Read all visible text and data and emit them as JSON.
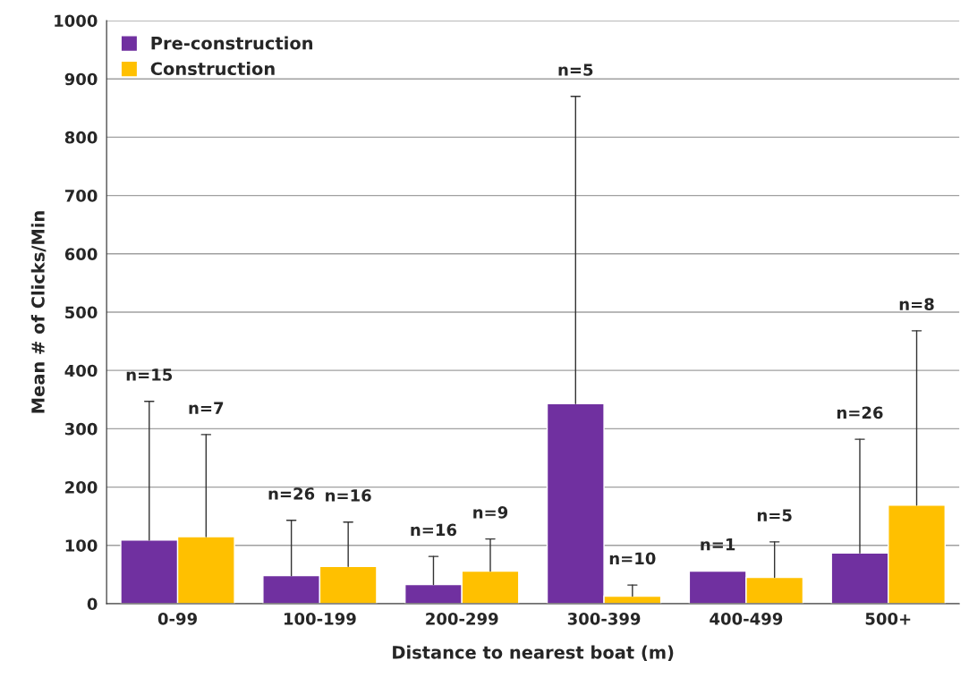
{
  "chart_data": {
    "type": "bar",
    "xlabel": "Distance to nearest boat (m)",
    "ylabel": "Mean # of Clicks/Min",
    "categories": [
      "0-99",
      "100-199",
      "200-299",
      "300-399",
      "400-499",
      "500+"
    ],
    "series": [
      {
        "name": "Pre-construction",
        "color": "#7030a0",
        "values": [
          109,
          48,
          33,
          343,
          56,
          87
        ],
        "errors": [
          [
            109,
            347
          ],
          [
            48,
            143
          ],
          [
            33,
            81
          ],
          [
            343,
            870
          ],
          null,
          [
            87,
            282
          ]
        ]
      },
      {
        "name": "Construction",
        "color": "#ffc000",
        "values": [
          115,
          64,
          56,
          13,
          45,
          169
        ],
        "errors": [
          [
            115,
            290
          ],
          [
            64,
            140
          ],
          [
            56,
            111
          ],
          [
            13,
            32
          ],
          [
            45,
            106
          ],
          [
            169,
            468
          ]
        ]
      }
    ],
    "annotations": [
      "n=15",
      "n=26",
      "n=16",
      "n=5",
      "n=1",
      "n=26",
      "n=7",
      "n=16",
      "n=9",
      "n=10",
      "n=5",
      "n=8"
    ],
    "ylim": [
      0,
      1000
    ],
    "yticks": [
      0,
      100,
      200,
      300,
      400,
      500,
      600,
      700,
      800,
      900,
      1000
    ],
    "grid": "y",
    "legend": "top left"
  }
}
